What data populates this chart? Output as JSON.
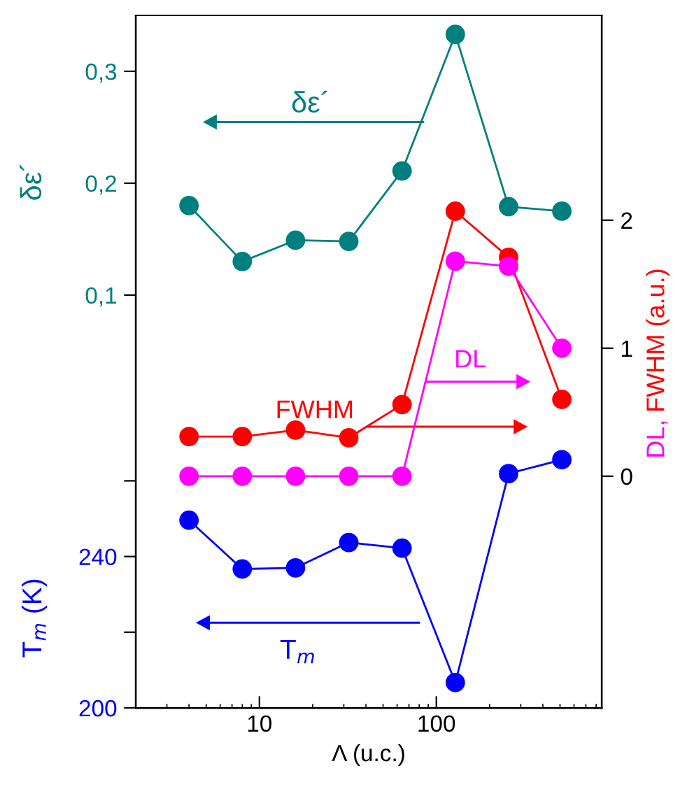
{
  "chart_data": {
    "type": "line",
    "xlabel": "Λ (u.c.)",
    "ylabel": "δε´",
    "y2label": "DL, FWHM (a.u.)",
    "y3label": "T$_{m}$ (K)",
    "log": "x",
    "xlim": [
      2,
      860
    ],
    "xticks": [
      10,
      100
    ],
    "ylim": [
      -0.269,
      0.35
    ],
    "yticks": [
      {
        "value": 0.1,
        "label": "0,1"
      },
      {
        "value": 0.2,
        "label": "0,2"
      },
      {
        "value": 0.3,
        "label": "0,3"
      }
    ],
    "y2lim": [
      -1.81,
      3.6
    ],
    "y2ticks": [
      0,
      1,
      2
    ],
    "y3lim": [
      200,
      383
    ],
    "y3ticks": [
      200,
      {
        "value": 220,
        "label": null
      },
      240,
      {
        "value": 260,
        "label": null
      }
    ],
    "x": [
      4,
      8,
      16,
      32,
      64,
      128,
      256,
      512
    ],
    "marker": "circle",
    "grid": false,
    "legend": false,
    "series": [
      {
        "color": "#007f7f",
        "axis": "y",
        "values": [
          0.18,
          0.13,
          0.149,
          0.148,
          0.211,
          0.333,
          0.179,
          0.175
        ]
      },
      {
        "color": "#ff0000",
        "axis": "y2",
        "values": [
          0.31,
          0.31,
          0.36,
          0.3,
          0.56,
          2.07,
          1.71,
          0.6
        ]
      },
      {
        "color": "#ff00ff",
        "axis": "y2",
        "values": [
          0,
          0,
          0,
          0,
          0,
          1.68,
          1.64,
          1.0
        ]
      },
      {
        "color": "#0000ff",
        "axis": "y3",
        "values": [
          249.6,
          236.7,
          237,
          243.7,
          242.2,
          206.7,
          261.9,
          265.6
        ]
      }
    ],
    "annotations": [
      "δε´",
      "FWHM",
      "DL",
      "T$_{m}$"
    ]
  }
}
